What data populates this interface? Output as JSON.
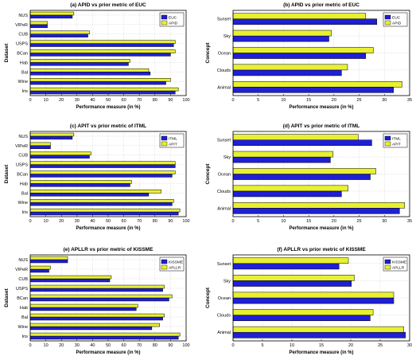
{
  "colors": {
    "series_a": "#1f1fd6",
    "series_b": "#e8f032",
    "bar_edge": "#000000"
  },
  "xlabel": "Performance measure (in %)",
  "chart_data": [
    {
      "type": "bar",
      "orientation": "horizontal",
      "title": "(a) APID vs prior metric of EUC",
      "ylabel": "Dataset",
      "xlabel": "Performance measure (in %)",
      "categories": [
        "Iris",
        "Wine",
        "Bal",
        "Hab",
        "BCan",
        "USPS",
        "CUB",
        "VIPeR",
        "NUS"
      ],
      "series": [
        {
          "name": "EUC",
          "color": "#1f1fd6",
          "values": [
            93,
            87,
            77,
            63,
            90,
            92,
            37,
            11,
            27
          ]
        },
        {
          "name": "APID",
          "color": "#e8f032",
          "values": [
            95,
            90,
            76,
            64,
            93,
            93,
            38,
            11,
            28
          ]
        }
      ],
      "xlim": [
        0,
        100
      ],
      "xticks": [
        0,
        10,
        20,
        30,
        40,
        50,
        60,
        70,
        80,
        90,
        100
      ],
      "grid": true,
      "legend": "top-right"
    },
    {
      "type": "bar",
      "orientation": "horizontal",
      "title": "(b) APID vs prior metric of EUC",
      "ylabel": "Concept",
      "xlabel": "Performance measure (in %)",
      "categories": [
        "Animal",
        "Clouds",
        "Ocean",
        "Sky",
        "Sunset"
      ],
      "series": [
        {
          "name": "EUC",
          "color": "#1f1fd6",
          "values": [
            31.8,
            21.5,
            26.3,
            19.0,
            28.5
          ]
        },
        {
          "name": "APID",
          "color": "#e8f032",
          "values": [
            33.5,
            22.7,
            27.8,
            19.5,
            26.3
          ]
        }
      ],
      "xlim": [
        0,
        35
      ],
      "xticks": [
        0,
        5,
        10,
        15,
        20,
        25,
        30,
        35
      ],
      "grid": true,
      "legend": "top-right"
    },
    {
      "type": "bar",
      "orientation": "horizontal",
      "title": "(c) APIT vs prior metric of ITML",
      "ylabel": "Dataset",
      "xlabel": "Performance measure (in %)",
      "categories": [
        "Iris",
        "Wine",
        "Bal",
        "Hab",
        "BCan",
        "USPS",
        "CUB",
        "VIPeR",
        "NUS"
      ],
      "series": [
        {
          "name": "ITML",
          "color": "#1f1fd6",
          "values": [
            95,
            91,
            76,
            64,
            91,
            93,
            38,
            13,
            27
          ]
        },
        {
          "name": "APIT",
          "color": "#e8f032",
          "values": [
            96,
            92,
            84,
            65,
            93,
            93,
            39,
            13,
            28
          ]
        }
      ],
      "xlim": [
        0,
        100
      ],
      "xticks": [
        0,
        10,
        20,
        30,
        40,
        50,
        60,
        70,
        80,
        90,
        100
      ],
      "grid": true,
      "legend": "top-right"
    },
    {
      "type": "bar",
      "orientation": "horizontal",
      "title": "(d) APIT vs prior metric of ITML",
      "ylabel": "Concept",
      "xlabel": "Performance measure (in %)",
      "categories": [
        "Animal",
        "Clouds",
        "Ocean",
        "Sky",
        "Sunset"
      ],
      "series": [
        {
          "name": "ITML",
          "color": "#1f1fd6",
          "values": [
            33.0,
            21.5,
            27.2,
            19.3,
            27.5
          ]
        },
        {
          "name": "APIT",
          "color": "#e8f032",
          "values": [
            34.0,
            22.8,
            28.3,
            19.8,
            24.8
          ]
        }
      ],
      "xlim": [
        0,
        35
      ],
      "xticks": [
        0,
        5,
        10,
        15,
        20,
        25,
        30,
        35
      ],
      "grid": true,
      "legend": "top-right"
    },
    {
      "type": "bar",
      "orientation": "horizontal",
      "title": "(e) APLLR vs prior metric of KISSME",
      "ylabel": "Dataset",
      "xlabel": "Performance measure (in %)",
      "categories": [
        "Iris",
        "Wine",
        "Bal",
        "Hab",
        "BCan",
        "USPS",
        "CUB",
        "VIPeR",
        "NUS"
      ],
      "series": [
        {
          "name": "KISSME",
          "color": "#1f1fd6",
          "values": [
            95,
            78,
            85,
            68,
            89,
            85,
            51,
            12,
            24
          ]
        },
        {
          "name": "APLLR",
          "color": "#e8f032",
          "values": [
            96,
            83,
            86,
            69,
            91,
            86,
            52,
            13,
            24
          ]
        }
      ],
      "xlim": [
        0,
        100
      ],
      "xticks": [
        0,
        10,
        20,
        30,
        40,
        50,
        60,
        70,
        80,
        90,
        100
      ],
      "grid": true,
      "legend": "top-right"
    },
    {
      "type": "bar",
      "orientation": "horizontal",
      "title": "(f) APLLR vs prior metric of KISSME",
      "ylabel": "Concept",
      "xlabel": "Performance measure (in %)",
      "categories": [
        "Animal",
        "Clouds",
        "Ocean",
        "Sky",
        "Sunset"
      ],
      "series": [
        {
          "name": "KISSME",
          "color": "#1f1fd6",
          "values": [
            29.3,
            23.3,
            27.3,
            20.1,
            18.0
          ]
        },
        {
          "name": "APLLR",
          "color": "#e8f032",
          "values": [
            29.0,
            23.8,
            27.3,
            20.6,
            19.6
          ]
        }
      ],
      "xlim": [
        0,
        30
      ],
      "xticks": [
        0,
        5,
        10,
        15,
        20,
        25,
        30
      ],
      "grid": true,
      "legend": "top-right"
    }
  ]
}
